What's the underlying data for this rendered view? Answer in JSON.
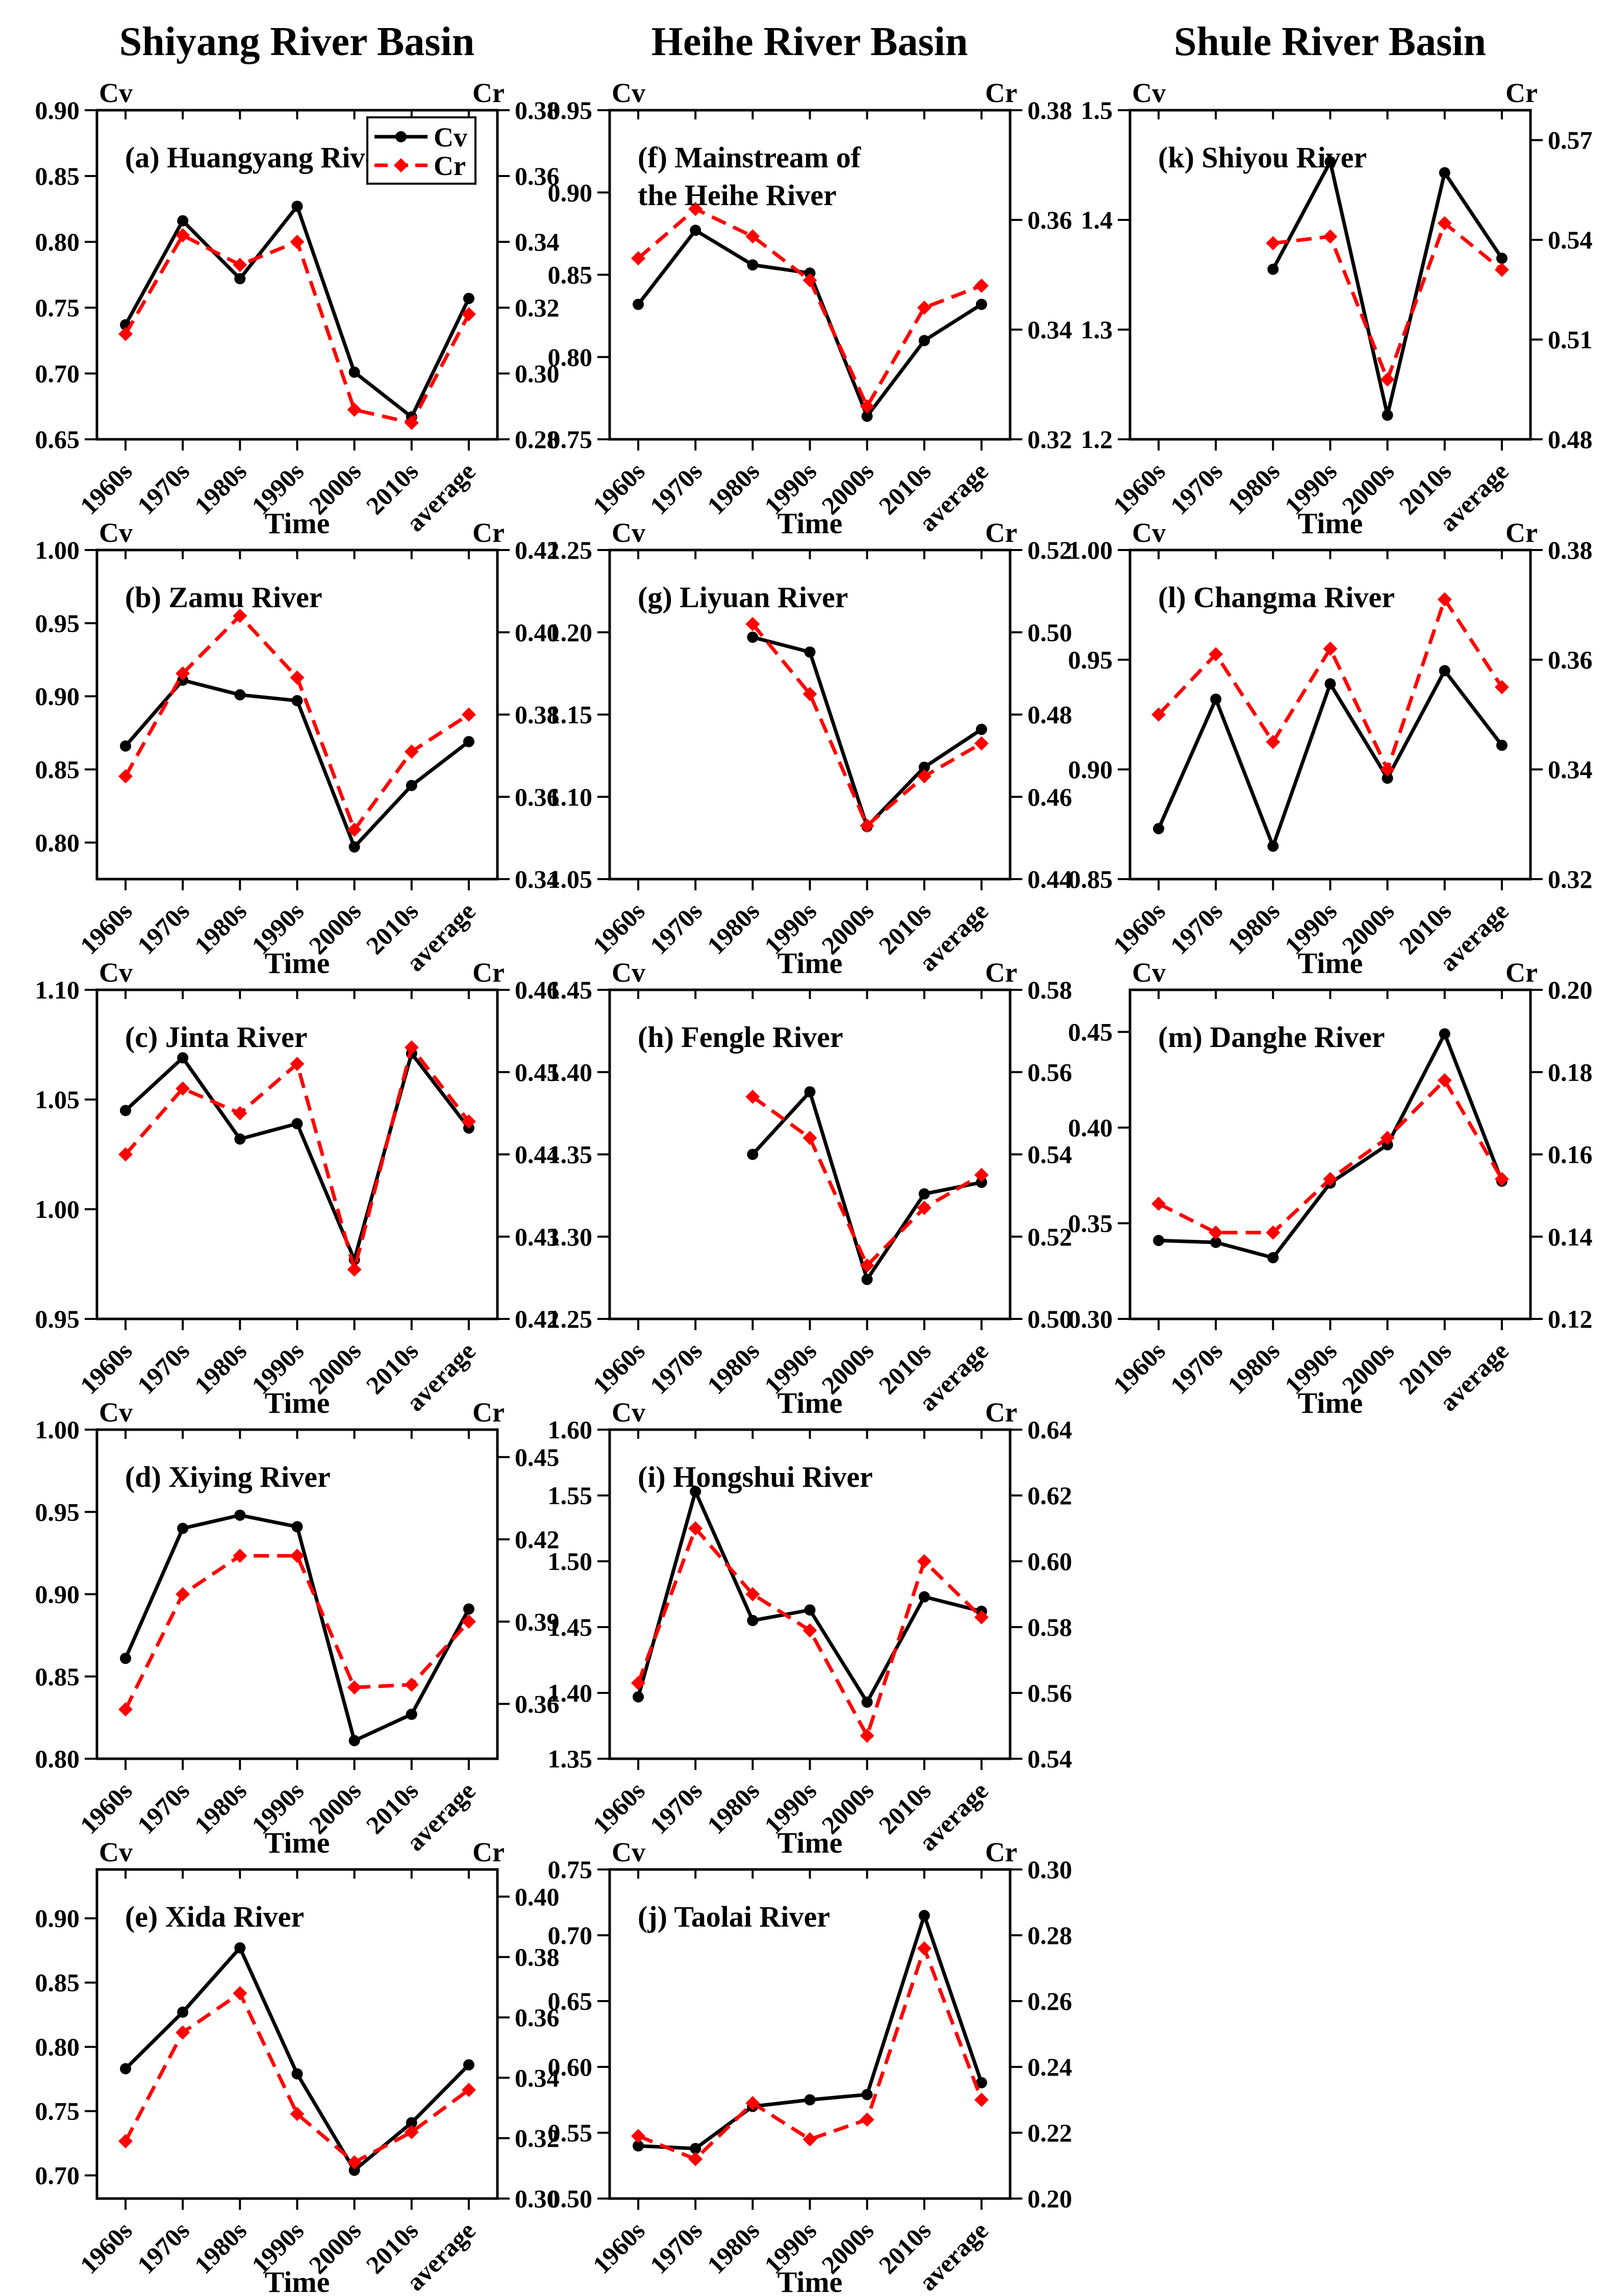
{
  "page": {
    "background": "#ffffff"
  },
  "column_titles": [
    "Shiyang River Basin",
    "Heihe River Basin",
    "Shule River Basin"
  ],
  "shared": {
    "x_categories": [
      "1960s",
      "1970s",
      "1980s",
      "1990s",
      "2000s",
      "2010s",
      "average"
    ],
    "x_axis_label": "Time",
    "left_axis_title": "Cv",
    "right_axis_title": "Cr",
    "colors": {
      "cv": "#000000",
      "cr": "#ff0000"
    },
    "legend": {
      "entries": [
        {
          "label": "Cv",
          "color": "#000000",
          "marker": "circle",
          "line": "solid"
        },
        {
          "label": "Cr",
          "color": "#ff0000",
          "marker": "diamond",
          "line": "dashed"
        }
      ]
    }
  },
  "chart_data": [
    {
      "id": "a",
      "row": 0,
      "col": 0,
      "type": "line",
      "basin": "Shiyang River Basin",
      "title_lines": [
        "(a) Huangyang River"
      ],
      "legend": true,
      "left_axis": {
        "title": "Cv",
        "min": 0.65,
        "max": 0.9,
        "ticks": [
          0.65,
          0.7,
          0.75,
          0.8,
          0.85,
          0.9
        ],
        "labels": [
          "0.65",
          "0.70",
          "0.75",
          "0.80",
          "0.85",
          "0.90"
        ]
      },
      "right_axis": {
        "title": "Cr",
        "min": 0.28,
        "max": 0.38,
        "ticks": [
          0.28,
          0.3,
          0.32,
          0.34,
          0.36,
          0.38
        ],
        "labels": [
          "0.28",
          "0.30",
          "0.32",
          "0.34",
          "0.36",
          "0.38"
        ]
      },
      "series": [
        {
          "name": "Cv",
          "axis": "left",
          "values": [
            0.737,
            0.816,
            0.772,
            0.827,
            0.701,
            0.667,
            0.757
          ]
        },
        {
          "name": "Cr",
          "axis": "right",
          "values": [
            0.312,
            0.342,
            0.333,
            0.34,
            0.289,
            0.285,
            0.318
          ]
        }
      ]
    },
    {
      "id": "b",
      "row": 1,
      "col": 0,
      "type": "line",
      "basin": "Shiyang River Basin",
      "title_lines": [
        "(b) Zamu River"
      ],
      "legend": false,
      "left_axis": {
        "title": "Cv",
        "min": 0.775,
        "max": 1.0,
        "ticks": [
          0.8,
          0.85,
          0.9,
          0.95,
          1.0
        ],
        "labels": [
          "0.80",
          "0.85",
          "0.90",
          "0.95",
          "1.00"
        ]
      },
      "right_axis": {
        "title": "Cr",
        "min": 0.34,
        "max": 0.42,
        "ticks": [
          0.34,
          0.36,
          0.38,
          0.4,
          0.42
        ],
        "labels": [
          "0.34",
          "0.36",
          "0.38",
          "0.40",
          "0.42"
        ]
      },
      "series": [
        {
          "name": "Cv",
          "axis": "left",
          "values": [
            0.866,
            0.911,
            0.901,
            0.897,
            0.797,
            0.839,
            0.869
          ]
        },
        {
          "name": "Cr",
          "axis": "right",
          "values": [
            0.365,
            0.39,
            0.404,
            0.389,
            0.352,
            0.371,
            0.38
          ]
        }
      ]
    },
    {
      "id": "c",
      "row": 2,
      "col": 0,
      "type": "line",
      "basin": "Shiyang River Basin",
      "title_lines": [
        "(c) Jinta River"
      ],
      "legend": false,
      "left_axis": {
        "title": "Cv",
        "min": 0.95,
        "max": 1.1,
        "ticks": [
          0.95,
          1.0,
          1.05,
          1.1
        ],
        "labels": [
          "0.95",
          "1.00",
          "1.05",
          "1.10"
        ]
      },
      "right_axis": {
        "title": "Cr",
        "min": 0.42,
        "max": 0.46,
        "ticks": [
          0.42,
          0.43,
          0.44,
          0.45,
          0.46
        ],
        "labels": [
          "0.42",
          "0.43",
          "0.44",
          "0.45",
          "0.46"
        ]
      },
      "series": [
        {
          "name": "Cv",
          "axis": "left",
          "values": [
            1.045,
            1.069,
            1.032,
            1.039,
            0.977,
            1.071,
            1.037
          ]
        },
        {
          "name": "Cr",
          "axis": "right",
          "values": [
            0.44,
            0.448,
            0.445,
            0.451,
            0.426,
            0.453,
            0.444
          ]
        }
      ]
    },
    {
      "id": "d",
      "row": 3,
      "col": 0,
      "type": "line",
      "basin": "Shiyang River Basin",
      "title_lines": [
        "(d) Xiying River"
      ],
      "legend": false,
      "left_axis": {
        "title": "Cv",
        "min": 0.8,
        "max": 1.0,
        "ticks": [
          0.8,
          0.85,
          0.9,
          0.95,
          1.0
        ],
        "labels": [
          "0.80",
          "0.85",
          "0.90",
          "0.95",
          "1.00"
        ]
      },
      "right_axis": {
        "title": "Cr",
        "min": 0.34,
        "max": 0.46,
        "ticks": [
          0.36,
          0.39,
          0.42,
          0.45
        ],
        "labels": [
          "0.36",
          "0.39",
          "0.42",
          "0.45"
        ]
      },
      "series": [
        {
          "name": "Cv",
          "axis": "left",
          "values": [
            0.861,
            0.94,
            0.948,
            0.941,
            0.811,
            0.827,
            0.891
          ]
        },
        {
          "name": "Cr",
          "axis": "right",
          "values": [
            0.358,
            0.4,
            0.414,
            0.414,
            0.366,
            0.367,
            0.39
          ]
        }
      ]
    },
    {
      "id": "e",
      "row": 4,
      "col": 0,
      "type": "line",
      "basin": "Shiyang River Basin",
      "title_lines": [
        "(e) Xida River"
      ],
      "legend": false,
      "left_axis": {
        "title": "Cv",
        "min": 0.682,
        "max": 0.938,
        "ticks": [
          0.7,
          0.75,
          0.8,
          0.85,
          0.9
        ],
        "labels": [
          "0.70",
          "0.75",
          "0.80",
          "0.85",
          "0.90"
        ]
      },
      "right_axis": {
        "title": "Cr",
        "min": 0.3,
        "max": 0.409,
        "ticks": [
          0.3,
          0.32,
          0.34,
          0.36,
          0.38,
          0.4
        ],
        "labels": [
          "0.30",
          "0.32",
          "0.34",
          "0.36",
          "0.38",
          "0.40"
        ]
      },
      "series": [
        {
          "name": "Cv",
          "axis": "left",
          "values": [
            0.783,
            0.827,
            0.877,
            0.779,
            0.704,
            0.741,
            0.786
          ]
        },
        {
          "name": "Cr",
          "axis": "right",
          "values": [
            0.319,
            0.355,
            0.368,
            0.328,
            0.312,
            0.322,
            0.336
          ]
        }
      ]
    },
    {
      "id": "f",
      "row": 0,
      "col": 1,
      "type": "line",
      "basin": "Heihe River Basin",
      "title_lines": [
        "(f) Mainstream of",
        "the Heihe River"
      ],
      "legend": false,
      "left_axis": {
        "title": "Cv",
        "min": 0.75,
        "max": 0.95,
        "ticks": [
          0.75,
          0.8,
          0.85,
          0.9,
          0.95
        ],
        "labels": [
          "0.75",
          "0.80",
          "0.85",
          "0.90",
          "0.95"
        ]
      },
      "right_axis": {
        "title": "Cr",
        "min": 0.32,
        "max": 0.38,
        "ticks": [
          0.32,
          0.34,
          0.36,
          0.38
        ],
        "labels": [
          "0.32",
          "0.34",
          "0.36",
          "0.38"
        ]
      },
      "series": [
        {
          "name": "Cv",
          "axis": "left",
          "values": [
            0.832,
            0.877,
            0.856,
            0.851,
            0.764,
            0.81,
            0.832
          ]
        },
        {
          "name": "Cr",
          "axis": "right",
          "values": [
            0.353,
            0.362,
            0.357,
            0.349,
            0.326,
            0.344,
            0.348
          ]
        }
      ]
    },
    {
      "id": "g",
      "row": 1,
      "col": 1,
      "type": "line",
      "basin": "Heihe River Basin",
      "title_lines": [
        "(g) Liyuan River"
      ],
      "legend": false,
      "left_axis": {
        "title": "Cv",
        "min": 1.05,
        "max": 1.25,
        "ticks": [
          1.05,
          1.1,
          1.15,
          1.2,
          1.25
        ],
        "labels": [
          "1.05",
          "1.10",
          "1.15",
          "1.20",
          "1.25"
        ]
      },
      "right_axis": {
        "title": "Cr",
        "min": 0.44,
        "max": 0.52,
        "ticks": [
          0.44,
          0.46,
          0.48,
          0.5,
          0.52
        ],
        "labels": [
          "0.44",
          "0.46",
          "0.48",
          "0.50",
          "0.52"
        ]
      },
      "series": [
        {
          "name": "Cv",
          "axis": "left",
          "values": [
            null,
            null,
            1.197,
            1.188,
            1.082,
            1.118,
            1.141
          ]
        },
        {
          "name": "Cr",
          "axis": "right",
          "values": [
            null,
            null,
            0.502,
            0.485,
            0.453,
            0.465,
            0.473
          ]
        }
      ]
    },
    {
      "id": "h",
      "row": 2,
      "col": 1,
      "type": "line",
      "basin": "Heihe River Basin",
      "title_lines": [
        "(h) Fengle River"
      ],
      "legend": false,
      "left_axis": {
        "title": "Cv",
        "min": 1.25,
        "max": 1.45,
        "ticks": [
          1.25,
          1.3,
          1.35,
          1.4,
          1.45
        ],
        "labels": [
          "1.25",
          "1.30",
          "1.35",
          "1.40",
          "1.45"
        ]
      },
      "right_axis": {
        "title": "Cr",
        "min": 0.5,
        "max": 0.58,
        "ticks": [
          0.5,
          0.52,
          0.54,
          0.56,
          0.58
        ],
        "labels": [
          "0.50",
          "0.52",
          "0.54",
          "0.56",
          "0.58"
        ]
      },
      "series": [
        {
          "name": "Cv",
          "axis": "left",
          "values": [
            null,
            null,
            1.35,
            1.388,
            1.274,
            1.326,
            1.333
          ]
        },
        {
          "name": "Cr",
          "axis": "right",
          "values": [
            null,
            null,
            0.554,
            0.544,
            0.513,
            0.527,
            0.535
          ]
        }
      ]
    },
    {
      "id": "i",
      "row": 3,
      "col": 1,
      "type": "line",
      "basin": "Heihe River Basin",
      "title_lines": [
        "(i) Hongshui River"
      ],
      "legend": false,
      "left_axis": {
        "title": "Cv",
        "min": 1.35,
        "max": 1.6,
        "ticks": [
          1.35,
          1.4,
          1.45,
          1.5,
          1.55,
          1.6
        ],
        "labels": [
          "1.35",
          "1.40",
          "1.45",
          "1.50",
          "1.55",
          "1.60"
        ]
      },
      "right_axis": {
        "title": "Cr",
        "min": 0.54,
        "max": 0.64,
        "ticks": [
          0.54,
          0.56,
          0.58,
          0.6,
          0.62,
          0.64
        ],
        "labels": [
          "0.54",
          "0.56",
          "0.58",
          "0.60",
          "0.62",
          "0.64"
        ]
      },
      "series": [
        {
          "name": "Cv",
          "axis": "left",
          "values": [
            1.397,
            1.553,
            1.455,
            1.463,
            1.393,
            1.473,
            1.462
          ]
        },
        {
          "name": "Cr",
          "axis": "right",
          "values": [
            0.563,
            0.61,
            0.59,
            0.579,
            0.547,
            0.6,
            0.583
          ]
        }
      ]
    },
    {
      "id": "j",
      "row": 4,
      "col": 1,
      "type": "line",
      "basin": "Heihe River Basin",
      "title_lines": [
        "(j) Taolai River"
      ],
      "legend": false,
      "left_axis": {
        "title": "Cv",
        "min": 0.5,
        "max": 0.75,
        "ticks": [
          0.5,
          0.55,
          0.6,
          0.65,
          0.7,
          0.75
        ],
        "labels": [
          "0.50",
          "0.55",
          "0.60",
          "0.65",
          "0.70",
          "0.75"
        ]
      },
      "right_axis": {
        "title": "Cr",
        "min": 0.2,
        "max": 0.3,
        "ticks": [
          0.2,
          0.22,
          0.24,
          0.26,
          0.28,
          0.3
        ],
        "labels": [
          "0.20",
          "0.22",
          "0.24",
          "0.26",
          "0.28",
          "0.30"
        ]
      },
      "series": [
        {
          "name": "Cv",
          "axis": "left",
          "values": [
            0.54,
            0.538,
            0.57,
            0.575,
            0.579,
            0.715,
            0.588
          ]
        },
        {
          "name": "Cr",
          "axis": "right",
          "values": [
            0.219,
            0.212,
            0.229,
            0.218,
            0.224,
            0.276,
            0.23
          ]
        }
      ]
    },
    {
      "id": "k",
      "row": 0,
      "col": 2,
      "type": "line",
      "basin": "Shule River Basin",
      "title_lines": [
        "(k) Shiyou River"
      ],
      "legend": false,
      "left_axis": {
        "title": "Cv",
        "min": 1.2,
        "max": 1.5,
        "ticks": [
          1.2,
          1.3,
          1.4,
          1.5
        ],
        "labels": [
          "1.2",
          "1.3",
          "1.4",
          "1.5"
        ]
      },
      "right_axis": {
        "title": "Cr",
        "min": 0.48,
        "max": 0.579,
        "ticks": [
          0.48,
          0.51,
          0.54,
          0.57
        ],
        "labels": [
          "0.48",
          "0.51",
          "0.54",
          "0.57"
        ]
      },
      "series": [
        {
          "name": "Cv",
          "axis": "left",
          "values": [
            null,
            null,
            1.355,
            1.453,
            1.222,
            1.443,
            1.365
          ]
        },
        {
          "name": "Cr",
          "axis": "right",
          "values": [
            null,
            null,
            0.539,
            0.541,
            0.498,
            0.545,
            0.531
          ]
        }
      ]
    },
    {
      "id": "l",
      "row": 1,
      "col": 2,
      "type": "line",
      "basin": "Shule River Basin",
      "title_lines": [
        "(l) Changma River"
      ],
      "legend": false,
      "left_axis": {
        "title": "Cv",
        "min": 0.85,
        "max": 1.0,
        "ticks": [
          0.85,
          0.9,
          0.95,
          1.0
        ],
        "labels": [
          "0.85",
          "0.90",
          "0.95",
          "1.00"
        ]
      },
      "right_axis": {
        "title": "Cr",
        "min": 0.32,
        "max": 0.38,
        "ticks": [
          0.32,
          0.34,
          0.36,
          0.38
        ],
        "labels": [
          "0.32",
          "0.34",
          "0.36",
          "0.38"
        ]
      },
      "series": [
        {
          "name": "Cv",
          "axis": "left",
          "values": [
            0.873,
            0.932,
            0.865,
            0.939,
            0.896,
            0.945,
            0.911
          ]
        },
        {
          "name": "Cr",
          "axis": "right",
          "values": [
            0.35,
            0.361,
            0.345,
            0.362,
            0.34,
            0.371,
            0.355
          ]
        }
      ]
    },
    {
      "id": "m",
      "row": 2,
      "col": 2,
      "type": "line",
      "basin": "Shule River Basin",
      "title_lines": [
        "(m) Danghe River"
      ],
      "legend": false,
      "left_axis": {
        "title": "Cv",
        "min": 0.3,
        "max": 0.472,
        "ticks": [
          0.3,
          0.35,
          0.4,
          0.45
        ],
        "labels": [
          "0.30",
          "0.35",
          "0.40",
          "0.45"
        ]
      },
      "right_axis": {
        "title": "Cr",
        "min": 0.12,
        "max": 0.2,
        "ticks": [
          0.12,
          0.14,
          0.16,
          0.18,
          0.2
        ],
        "labels": [
          "0.12",
          "0.14",
          "0.16",
          "0.18",
          "0.20"
        ]
      },
      "series": [
        {
          "name": "Cv",
          "axis": "left",
          "values": [
            0.341,
            0.34,
            0.332,
            0.371,
            0.391,
            0.449,
            0.372
          ]
        },
        {
          "name": "Cr",
          "axis": "right",
          "values": [
            0.148,
            0.141,
            0.141,
            0.154,
            0.164,
            0.178,
            0.154
          ]
        }
      ]
    }
  ]
}
